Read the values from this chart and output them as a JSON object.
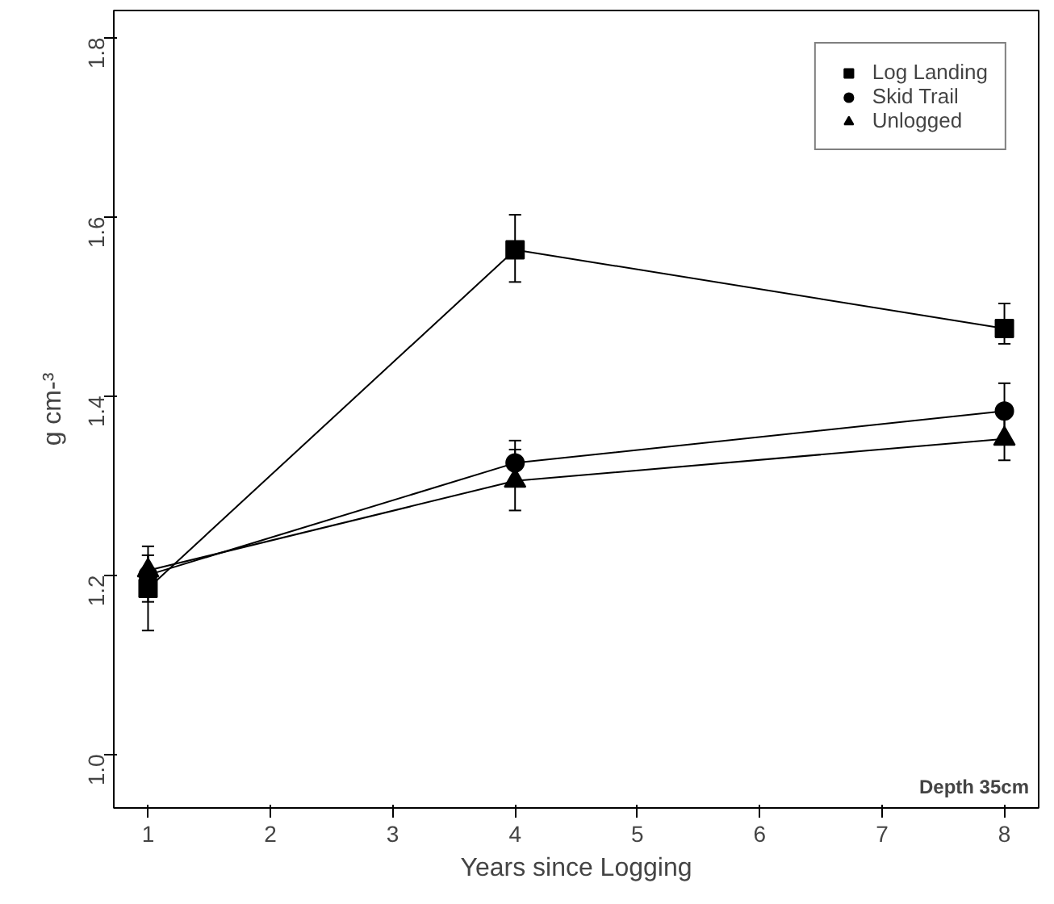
{
  "chart_data": {
    "type": "line",
    "xlabel": "Years since Logging",
    "ylabel": "g cm-³",
    "x": [
      1,
      4,
      8
    ],
    "xlim": [
      0.72,
      8.28
    ],
    "xticks": [
      1,
      2,
      3,
      4,
      5,
      6,
      7,
      8
    ],
    "ylim": [
      0.94,
      1.83
    ],
    "yticks": [
      {
        "value": 1.0,
        "label": "1.0"
      },
      {
        "value": 1.2,
        "label": "1.2"
      },
      {
        "value": 1.4,
        "label": "1.4"
      },
      {
        "value": 1.6,
        "label": "1.6"
      },
      {
        "value": 1.8,
        "label": "1.8"
      }
    ],
    "legend": "top right",
    "grid": false,
    "annotations": [
      "Depth 35cm"
    ],
    "series": [
      {
        "name": "Log Landing",
        "color": "#000000",
        "marker": "square",
        "values": [
          1.185,
          1.563,
          1.475
        ],
        "errors": [
          [
            1.138,
            1.222
          ],
          [
            1.527,
            1.602
          ],
          [
            1.458,
            1.503
          ]
        ]
      },
      {
        "name": "Skid Trail",
        "color": "#000000",
        "marker": "circle",
        "values": [
          1.2,
          1.325,
          1.383
        ],
        "errors": [
          [
            1.17,
            1.222
          ],
          [
            1.3,
            1.35
          ],
          [
            1.352,
            1.414
          ]
        ]
      },
      {
        "name": "Unlogged",
        "color": "#000000",
        "marker": "triangle",
        "values": [
          1.205,
          1.305,
          1.352
        ],
        "errors": [
          [
            1.205,
            1.232
          ],
          [
            1.272,
            1.34
          ],
          [
            1.328,
            1.378
          ]
        ]
      }
    ]
  }
}
